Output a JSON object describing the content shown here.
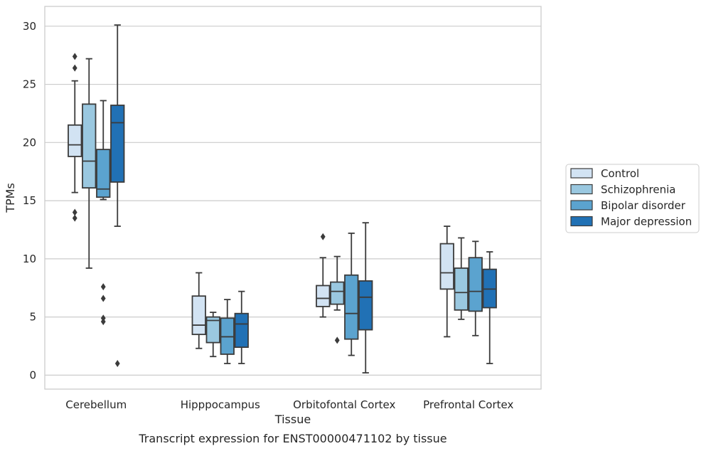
{
  "chart_data": {
    "type": "box",
    "xlabel": "Tissue",
    "ylabel": "TPMs",
    "caption": "Transcript expression for ENST00000471102 by tissue",
    "ylim": [
      -1.2,
      31.7
    ],
    "yticks": [
      0,
      5,
      10,
      15,
      20,
      25,
      30
    ],
    "grid": true,
    "legend_placement": "right",
    "categories": [
      "Cerebellum",
      "Hipppocampus",
      "Orbitofontal Cortex",
      "Prefrontal Cortex"
    ],
    "series": [
      {
        "name": "Control",
        "color": "#d2e3f3",
        "boxes": [
          {
            "whislo": 15.7,
            "q1": 18.8,
            "med": 19.8,
            "q3": 21.5,
            "whishi": 25.3,
            "fliers": [
              27.4,
              26.4,
              14.0,
              13.5
            ]
          },
          {
            "whislo": 2.3,
            "q1": 3.5,
            "med": 4.3,
            "q3": 6.8,
            "whishi": 8.8,
            "fliers": []
          },
          {
            "whislo": 5.0,
            "q1": 5.9,
            "med": 6.6,
            "q3": 7.7,
            "whishi": 10.1,
            "fliers": [
              11.9
            ]
          },
          {
            "whislo": 3.3,
            "q1": 7.4,
            "med": 8.8,
            "q3": 11.3,
            "whishi": 12.8,
            "fliers": []
          }
        ]
      },
      {
        "name": "Schizophrenia",
        "color": "#9ac8e0",
        "boxes": [
          {
            "whislo": 9.2,
            "q1": 16.1,
            "med": 18.4,
            "q3": 23.3,
            "whishi": 27.2,
            "fliers": []
          },
          {
            "whislo": 1.6,
            "q1": 2.8,
            "med": 4.7,
            "q3": 5.0,
            "whishi": 5.4,
            "fliers": []
          },
          {
            "whislo": 5.6,
            "q1": 6.1,
            "med": 7.2,
            "q3": 8.0,
            "whishi": 10.2,
            "fliers": [
              3.0
            ]
          },
          {
            "whislo": 4.8,
            "q1": 5.6,
            "med": 7.1,
            "q3": 9.2,
            "whishi": 11.8,
            "fliers": []
          }
        ]
      },
      {
        "name": "Bipolar disorder",
        "color": "#5ba3cf",
        "boxes": [
          {
            "whislo": 15.1,
            "q1": 15.3,
            "med": 16.0,
            "q3": 19.4,
            "whishi": 23.6,
            "fliers": [
              7.6,
              6.6,
              4.9,
              4.6
            ]
          },
          {
            "whislo": 1.0,
            "q1": 1.8,
            "med": 3.3,
            "q3": 4.9,
            "whishi": 6.5,
            "fliers": []
          },
          {
            "whislo": 1.7,
            "q1": 3.1,
            "med": 5.3,
            "q3": 8.6,
            "whishi": 12.2,
            "fliers": []
          },
          {
            "whislo": 3.4,
            "q1": 5.5,
            "med": 7.2,
            "q3": 10.1,
            "whishi": 11.5,
            "fliers": []
          }
        ]
      },
      {
        "name": "Major depression",
        "color": "#2171b5",
        "boxes": [
          {
            "whislo": 12.8,
            "q1": 16.6,
            "med": 21.7,
            "q3": 23.2,
            "whishi": 30.1,
            "fliers": [
              1.0
            ]
          },
          {
            "whislo": 1.0,
            "q1": 2.4,
            "med": 4.4,
            "q3": 5.3,
            "whishi": 7.2,
            "fliers": []
          },
          {
            "whislo": 0.2,
            "q1": 3.9,
            "med": 6.7,
            "q3": 8.1,
            "whishi": 13.1,
            "fliers": []
          },
          {
            "whislo": 1.0,
            "q1": 5.8,
            "med": 7.4,
            "q3": 9.1,
            "whishi": 10.6,
            "fliers": []
          }
        ]
      }
    ]
  }
}
